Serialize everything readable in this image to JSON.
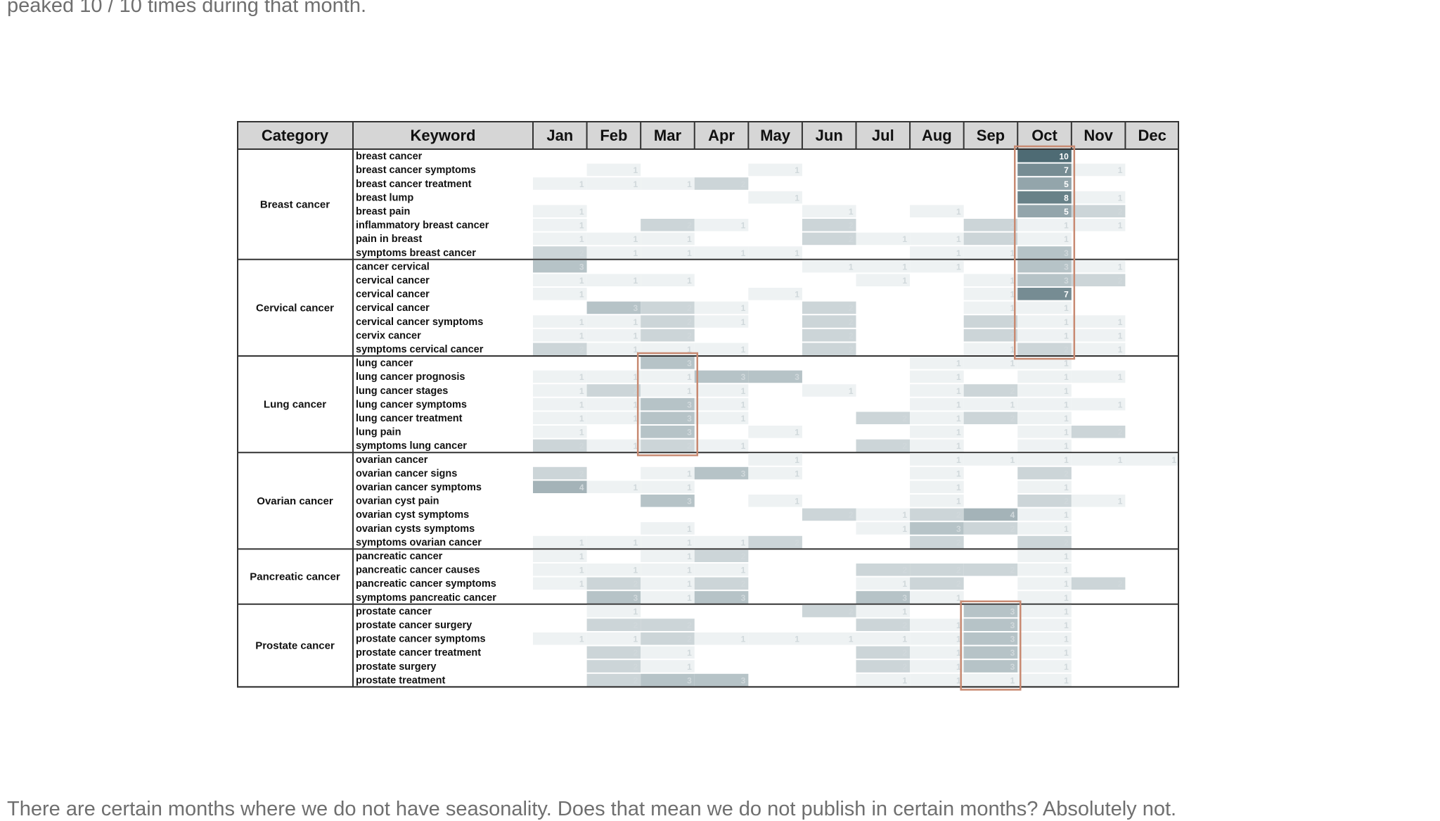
{
  "article": {
    "intro_text": "peaked 10 / 10 times during that month.",
    "outro_text": "There are certain months where we do not have seasonality. Does that mean we do not publish in certain months? Absolutely not."
  },
  "chart_data": {
    "type": "heatmap",
    "headers": {
      "category": "Category",
      "keyword": "Keyword"
    },
    "months": [
      "Jan",
      "Feb",
      "Mar",
      "Apr",
      "May",
      "Jun",
      "Jul",
      "Aug",
      "Sep",
      "Oct",
      "Nov",
      "Dec"
    ],
    "colors": {
      "header_bg": "#d6d6d6",
      "cell_max": "#4e6b74",
      "cell_min": "#eef2f3",
      "highlight_box": "#c88a72",
      "grid": "#333333"
    },
    "groups": [
      {
        "category": "Breast cancer",
        "rows": [
          {
            "keyword": "breast cancer",
            "values": [
              0,
              0,
              0,
              0,
              0,
              0,
              0,
              0,
              0,
              10,
              0,
              0
            ]
          },
          {
            "keyword": "breast cancer symptoms",
            "values": [
              0,
              1,
              0,
              0,
              1,
              0,
              0,
              0,
              0,
              7,
              1,
              0
            ]
          },
          {
            "keyword": "breast cancer treatment",
            "values": [
              1,
              1,
              1,
              2,
              0,
              0,
              0,
              0,
              0,
              5,
              0,
              0
            ]
          },
          {
            "keyword": "breast lump",
            "values": [
              0,
              0,
              0,
              0,
              1,
              0,
              0,
              0,
              0,
              8,
              1,
              0
            ]
          },
          {
            "keyword": "breast pain",
            "values": [
              1,
              0,
              0,
              0,
              0,
              1,
              0,
              1,
              0,
              5,
              2,
              0
            ]
          },
          {
            "keyword": "inflammatory breast cancer",
            "values": [
              1,
              0,
              2,
              1,
              0,
              2,
              0,
              0,
              2,
              1,
              1,
              0
            ]
          },
          {
            "keyword": "pain in breast",
            "values": [
              1,
              1,
              1,
              0,
              0,
              2,
              1,
              1,
              2,
              1,
              0,
              0
            ]
          },
          {
            "keyword": "symptoms breast cancer",
            "values": [
              2,
              1,
              1,
              1,
              1,
              0,
              0,
              1,
              1,
              3,
              0,
              0
            ]
          }
        ]
      },
      {
        "category": "Cervical cancer",
        "rows": [
          {
            "keyword": "cancer cervical",
            "values": [
              3,
              0,
              0,
              0,
              0,
              1,
              1,
              1,
              0,
              3,
              1,
              0
            ]
          },
          {
            "keyword": "cervical cancer",
            "values": [
              1,
              1,
              1,
              0,
              0,
              0,
              1,
              0,
              1,
              3,
              2,
              0
            ]
          },
          {
            "keyword": "cervical cancer",
            "values": [
              1,
              0,
              0,
              0,
              1,
              0,
              0,
              0,
              1,
              7,
              0,
              0
            ]
          },
          {
            "keyword": "cervical cancer",
            "values": [
              0,
              3,
              2,
              1,
              0,
              2,
              0,
              0,
              1,
              1,
              0,
              0
            ]
          },
          {
            "keyword": "cervical cancer symptoms",
            "values": [
              1,
              1,
              2,
              1,
              0,
              2,
              0,
              0,
              2,
              1,
              1,
              0
            ]
          },
          {
            "keyword": "cervix cancer",
            "values": [
              1,
              1,
              2,
              0,
              0,
              2,
              0,
              0,
              2,
              1,
              1,
              0
            ]
          },
          {
            "keyword": "symptoms cervical cancer",
            "values": [
              2,
              1,
              1,
              1,
              0,
              2,
              0,
              0,
              1,
              2,
              1,
              0
            ]
          }
        ]
      },
      {
        "category": "Lung cancer",
        "rows": [
          {
            "keyword": "lung cancer",
            "values": [
              0,
              0,
              3,
              0,
              0,
              0,
              0,
              1,
              1,
              1,
              0,
              0
            ]
          },
          {
            "keyword": "lung cancer prognosis",
            "values": [
              1,
              1,
              1,
              3,
              3,
              0,
              0,
              1,
              0,
              1,
              1,
              0
            ]
          },
          {
            "keyword": "lung cancer stages",
            "values": [
              1,
              2,
              1,
              1,
              0,
              1,
              0,
              1,
              2,
              1,
              0,
              0
            ]
          },
          {
            "keyword": "lung cancer symptoms",
            "values": [
              1,
              1,
              3,
              1,
              0,
              0,
              0,
              1,
              1,
              1,
              1,
              0
            ]
          },
          {
            "keyword": "lung cancer treatment",
            "values": [
              1,
              1,
              3,
              1,
              0,
              0,
              2,
              1,
              2,
              1,
              0,
              0
            ]
          },
          {
            "keyword": "lung pain",
            "values": [
              1,
              0,
              3,
              0,
              1,
              0,
              0,
              1,
              0,
              1,
              2,
              0
            ]
          },
          {
            "keyword": "symptoms lung cancer",
            "values": [
              2,
              1,
              2,
              1,
              0,
              0,
              2,
              1,
              0,
              1,
              0,
              0
            ]
          }
        ]
      },
      {
        "category": "Ovarian cancer",
        "rows": [
          {
            "keyword": "ovarian cancer",
            "values": [
              0,
              0,
              0,
              0,
              1,
              0,
              0,
              1,
              1,
              1,
              1,
              1
            ]
          },
          {
            "keyword": "ovarian cancer signs",
            "values": [
              2,
              0,
              1,
              3,
              1,
              0,
              0,
              1,
              0,
              2,
              0,
              0
            ]
          },
          {
            "keyword": "ovarian cancer symptoms",
            "values": [
              4,
              1,
              1,
              0,
              0,
              0,
              0,
              1,
              0,
              1,
              0,
              0
            ]
          },
          {
            "keyword": "ovarian cyst pain",
            "values": [
              0,
              0,
              3,
              0,
              1,
              0,
              0,
              1,
              0,
              2,
              1,
              0
            ]
          },
          {
            "keyword": "ovarian cyst symptoms",
            "values": [
              0,
              0,
              0,
              0,
              0,
              2,
              1,
              2,
              4,
              1,
              0,
              0
            ]
          },
          {
            "keyword": "ovarian cysts symptoms",
            "values": [
              0,
              0,
              1,
              0,
              0,
              0,
              1,
              3,
              2,
              1,
              0,
              0
            ]
          },
          {
            "keyword": "symptoms ovarian cancer",
            "values": [
              1,
              1,
              1,
              1,
              2,
              0,
              0,
              2,
              0,
              2,
              0,
              0
            ]
          }
        ]
      },
      {
        "category": "Pancreatic cancer",
        "rows": [
          {
            "keyword": "pancreatic cancer",
            "values": [
              1,
              0,
              1,
              2,
              0,
              0,
              0,
              0,
              0,
              1,
              0,
              0
            ]
          },
          {
            "keyword": "pancreatic cancer causes",
            "values": [
              1,
              1,
              1,
              1,
              0,
              0,
              2,
              2,
              2,
              1,
              0,
              0
            ]
          },
          {
            "keyword": "pancreatic cancer symptoms",
            "values": [
              1,
              2,
              1,
              2,
              0,
              0,
              1,
              2,
              0,
              1,
              2,
              0
            ]
          },
          {
            "keyword": "symptoms pancreatic cancer",
            "values": [
              0,
              3,
              1,
              3,
              0,
              0,
              3,
              1,
              0,
              1,
              0,
              0
            ]
          }
        ]
      },
      {
        "category": "Prostate cancer",
        "rows": [
          {
            "keyword": "prostate cancer",
            "values": [
              0,
              1,
              0,
              0,
              0,
              2,
              1,
              0,
              3,
              1,
              0,
              0
            ]
          },
          {
            "keyword": "prostate cancer surgery",
            "values": [
              0,
              2,
              2,
              0,
              0,
              0,
              2,
              1,
              3,
              1,
              0,
              0
            ]
          },
          {
            "keyword": "prostate cancer symptoms",
            "values": [
              1,
              1,
              2,
              1,
              1,
              1,
              1,
              1,
              3,
              1,
              0,
              0
            ]
          },
          {
            "keyword": "prostate cancer treatment",
            "values": [
              0,
              2,
              1,
              0,
              0,
              0,
              2,
              1,
              3,
              1,
              0,
              0
            ]
          },
          {
            "keyword": "prostate surgery",
            "values": [
              0,
              2,
              1,
              0,
              0,
              0,
              2,
              1,
              3,
              1,
              0,
              0
            ]
          },
          {
            "keyword": "prostate treatment",
            "values": [
              0,
              2,
              3,
              3,
              0,
              0,
              1,
              1,
              1,
              1,
              0,
              0
            ]
          }
        ]
      }
    ],
    "highlights": [
      {
        "month": "Oct",
        "from_group": "Breast cancer",
        "to_group": "Cervical cancer"
      },
      {
        "month": "Mar",
        "from_group": "Lung cancer",
        "to_group": "Lung cancer"
      },
      {
        "month": "Sep",
        "from_group": "Prostate cancer",
        "to_group": "Prostate cancer"
      }
    ]
  }
}
